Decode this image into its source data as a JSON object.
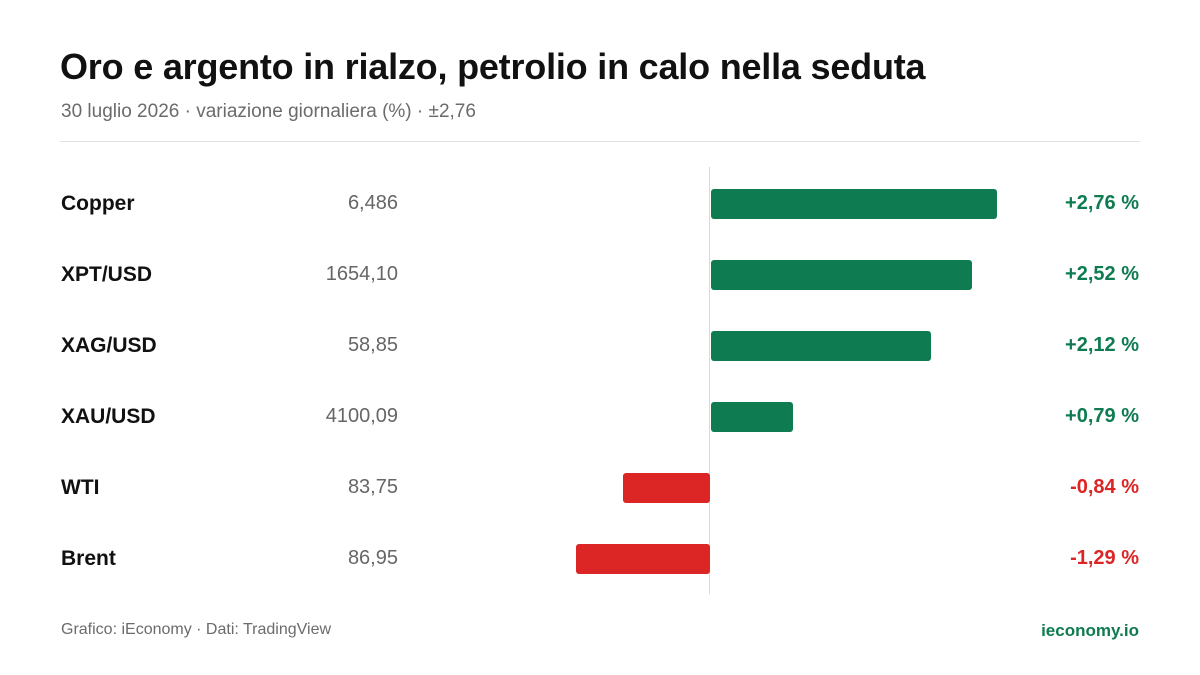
{
  "header": {
    "title": "Oro e argento in rialzo, petrolio in calo nella seduta",
    "subtitle": "30 luglio 2026 · variazione giornaliera (%) · ±2,76"
  },
  "footer": {
    "source": "Grafico: iEconomy · Dati: TradingView",
    "brand": "ieconomy.io"
  },
  "colors": {
    "positive": "#0e7b50",
    "negative": "#dc2626",
    "brand": "#0e7b50"
  },
  "chart_data": {
    "type": "bar",
    "orientation": "horizontal",
    "title": "Oro e argento in rialzo, petrolio in calo nella seduta",
    "subtitle": "30 luglio 2026 · variazione giornaliera (%) · ±2,76",
    "xlim": [
      -2.76,
      2.76
    ],
    "grid": false,
    "legend": "none",
    "categories": [
      "Copper",
      "XPT/USD",
      "XAG/USD",
      "XAU/USD",
      "WTI",
      "Brent"
    ],
    "prices": [
      "6,486",
      "1654,10",
      "58,85",
      "4100,09",
      "83,75",
      "86,95"
    ],
    "values": [
      2.76,
      2.52,
      2.12,
      0.79,
      -0.84,
      -1.29
    ],
    "value_labels": [
      "+2,76 %",
      "+2,52 %",
      "+2,12 %",
      "+0,79 %",
      "-0,84 %",
      "-1,29 %"
    ]
  }
}
